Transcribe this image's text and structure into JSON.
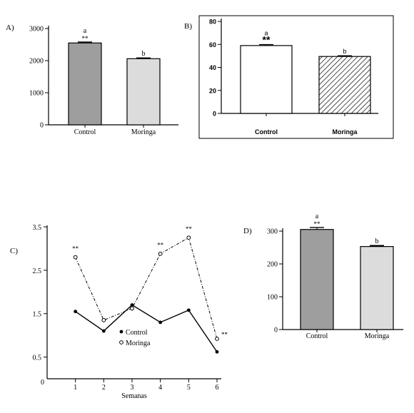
{
  "panels": {
    "A": "A)",
    "B": "B)",
    "C": "C)",
    "D": "D)"
  },
  "chart_data": [
    {
      "id": "A",
      "type": "bar",
      "categories": [
        "Control",
        "Moringa"
      ],
      "values": [
        2550,
        2060
      ],
      "errors": [
        30,
        25
      ],
      "letters": [
        "a",
        "b"
      ],
      "stars": [
        "**",
        ""
      ],
      "ylim": [
        0,
        3000
      ],
      "yticks": [
        0,
        1000,
        2000,
        3000
      ],
      "ytick_labels": [
        "0",
        "1000",
        "2000",
        "3000"
      ],
      "colors": [
        "#9e9e9e",
        "#dcdcdc"
      ]
    },
    {
      "id": "B",
      "type": "bar",
      "categories": [
        "Control",
        "Moringa"
      ],
      "values": [
        59,
        49.5
      ],
      "errors": [
        0.8,
        0.6
      ],
      "letters": [
        "a",
        "b"
      ],
      "stars": [
        "**",
        ""
      ],
      "ylim": [
        0,
        80
      ],
      "yticks": [
        0,
        20,
        40,
        60,
        80
      ],
      "ytick_labels": [
        "0",
        "20",
        "40",
        "60",
        "80"
      ],
      "colors": [
        "#ffffff",
        "hatched"
      ]
    },
    {
      "id": "C",
      "type": "line",
      "x": [
        1,
        2,
        3,
        4,
        5,
        6
      ],
      "xtick_labels": [
        "1",
        "2",
        "3",
        "4",
        "5",
        "6"
      ],
      "xlabel": "Semanas",
      "ylim": [
        0,
        3.5
      ],
      "xlim": [
        0,
        6
      ],
      "yticks": [
        0,
        0.5,
        1.5,
        2.5,
        3.5
      ],
      "ytick_labels": [
        "0",
        "0.5",
        "1.5",
        "2.5",
        "3.5"
      ],
      "series": [
        {
          "name": "Control",
          "values": [
            1.55,
            1.1,
            1.7,
            1.3,
            1.58,
            0.62
          ],
          "marker": "filled",
          "dash": "solid"
        },
        {
          "name": "Moringa",
          "values": [
            2.8,
            1.35,
            1.62,
            2.88,
            3.25,
            0.92
          ],
          "marker": "open",
          "dash": "dashdot"
        }
      ],
      "stars": [
        "**",
        "",
        "",
        "**",
        "**",
        "**"
      ]
    },
    {
      "id": "D",
      "type": "bar",
      "categories": [
        "Control",
        "Moringa"
      ],
      "values": [
        305,
        253
      ],
      "errors": [
        6,
        3
      ],
      "letters": [
        "a",
        "b"
      ],
      "stars": [
        "**",
        ""
      ],
      "ylim": [
        0,
        300
      ],
      "yticks": [
        0,
        100,
        200,
        300
      ],
      "ytick_labels": [
        "0",
        "100",
        "200",
        "300"
      ],
      "colors": [
        "#9e9e9e",
        "#dcdcdc"
      ]
    }
  ]
}
